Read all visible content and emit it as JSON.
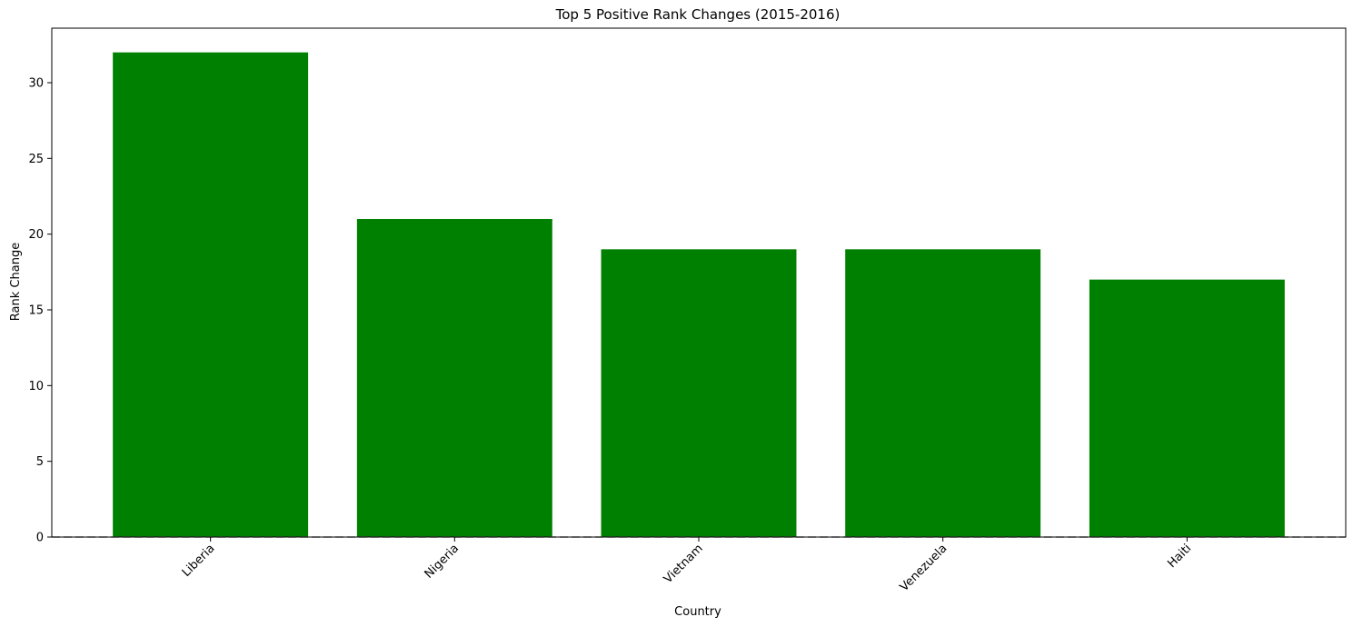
{
  "chart_data": {
    "type": "bar",
    "title": "Top 5 Positive Rank Changes (2015-2016)",
    "xlabel": "Country",
    "ylabel": "Rank Change",
    "categories": [
      "Liberia",
      "Nigeria",
      "Vietnam",
      "Venezuela",
      "Haiti"
    ],
    "values": [
      32,
      21,
      19,
      19,
      17
    ],
    "ylim": [
      0,
      33.6
    ],
    "yticks": [
      0,
      5,
      10,
      15,
      20,
      25,
      30
    ],
    "bar_color": "#008000",
    "baseline": {
      "value": 0,
      "style": "dashed",
      "color": "#808080"
    },
    "grid": false,
    "x_tick_rotation_deg": 45
  }
}
